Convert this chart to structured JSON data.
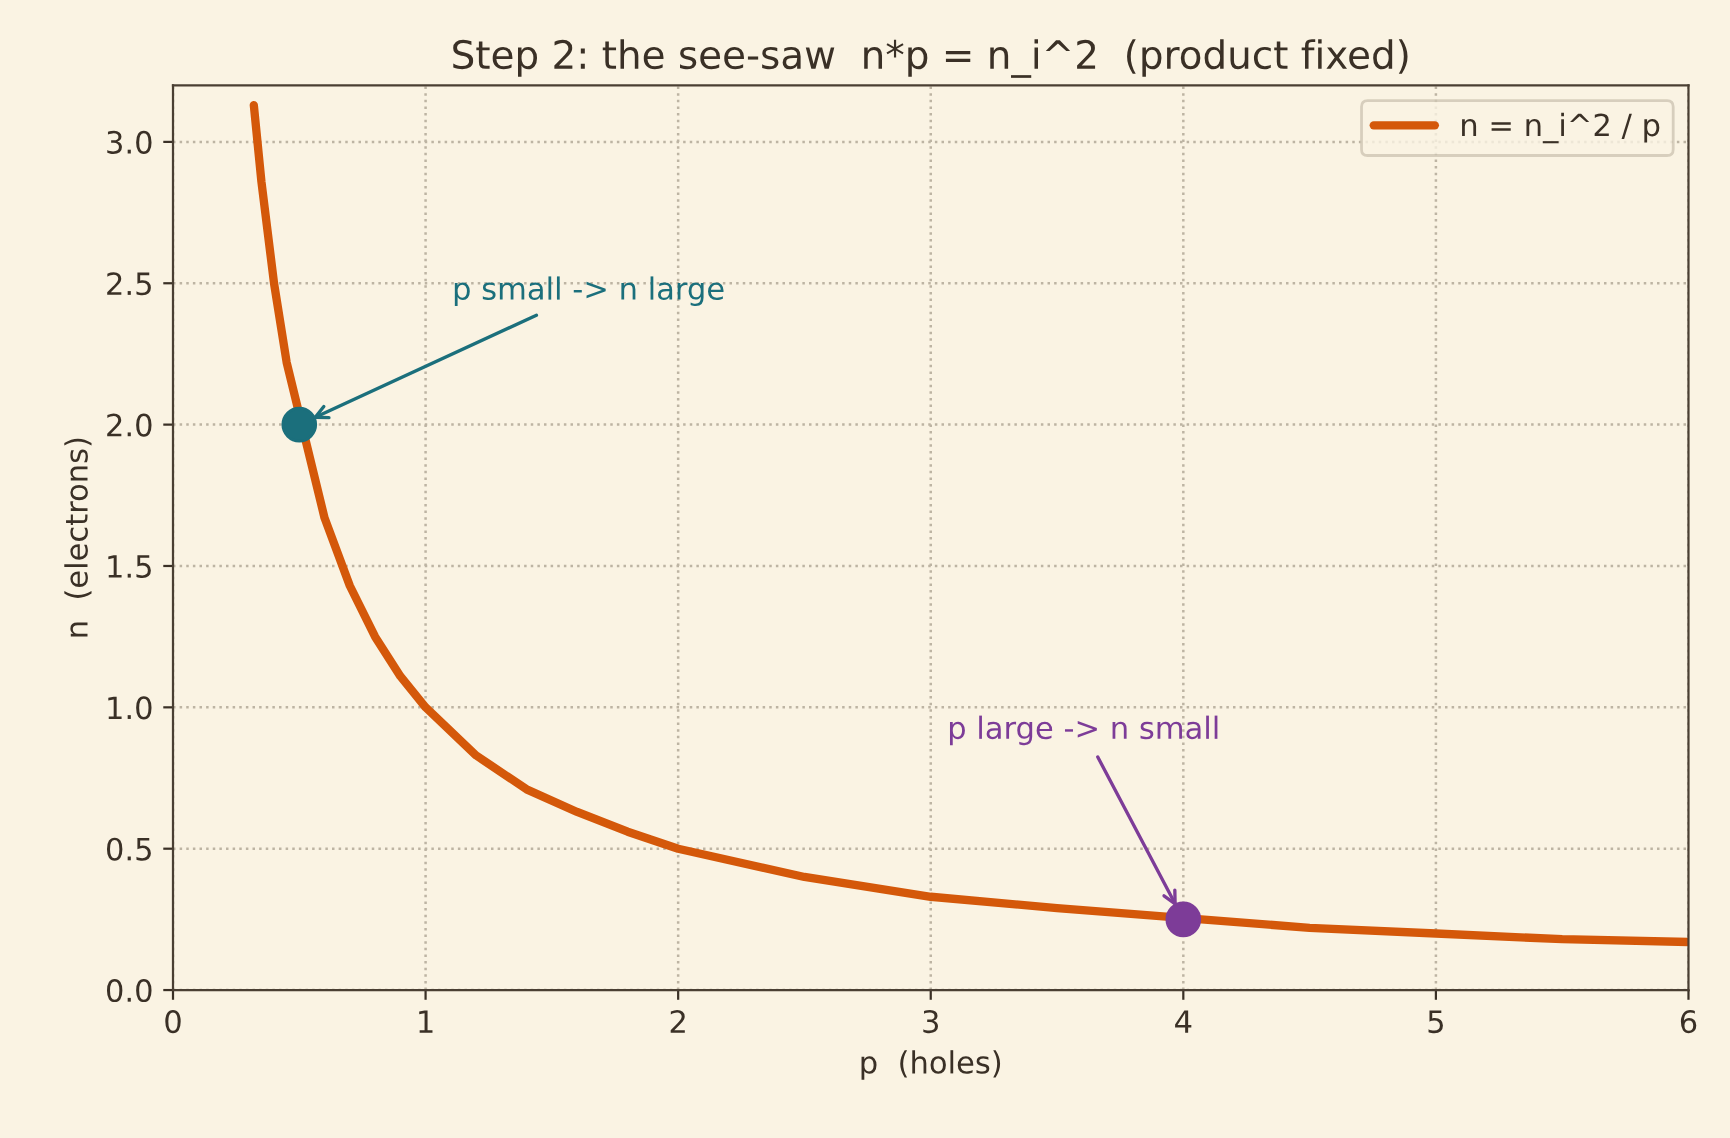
{
  "chart_data": {
    "type": "line",
    "title": "Step 2: the see-saw  n*p = n_i^2  (product fixed)",
    "xlabel": "p  (holes)",
    "ylabel": "n  (electrons)",
    "series": [
      {
        "name": "n = n_i^2 / p",
        "color": "#d4580a",
        "x": [
          0.32,
          0.35,
          0.4,
          0.45,
          0.6,
          0.7,
          0.8,
          0.9,
          1,
          1.2,
          1.4,
          1.6,
          1.8,
          2,
          2.5,
          3,
          3.5,
          4.5,
          5,
          5.5,
          6
        ],
        "values": [
          3.13,
          2.86,
          2.5,
          2.22,
          1.67,
          1.43,
          1.25,
          1.11,
          1.0,
          0.83,
          0.71,
          0.63,
          0.56,
          0.5,
          0.4,
          0.33,
          0.29,
          0.22,
          0.2,
          0.18,
          0.17
        ]
      },
      {
        "type": "scatter",
        "color": "#1b6f7c",
        "marker": "circle",
        "x": [
          0.5
        ],
        "values": [
          2.0
        ]
      },
      {
        "type": "scatter",
        "color": "#7d3c98",
        "marker": "circle",
        "x": [
          4
        ],
        "values": [
          0.25
        ]
      }
    ],
    "annotations": [
      {
        "text": "p small -> n large",
        "x": 0.5,
        "y": 2.0
      },
      {
        "text": "p large -> n small",
        "x": 4,
        "y": 0.25
      }
    ],
    "xlim": [
      0,
      6
    ],
    "ylim": [
      0,
      3.2
    ],
    "xticks": [
      0,
      1,
      2,
      3,
      4,
      5,
      6
    ],
    "yticks": [
      {
        "value": 0,
        "label": "0.0"
      },
      0.5,
      {
        "value": 1,
        "label": "1.0"
      },
      1.5,
      {
        "value": 2,
        "label": "2.0"
      },
      2.5,
      {
        "value": 3,
        "label": "3.0"
      }
    ],
    "grid": true,
    "legend": "top right"
  }
}
